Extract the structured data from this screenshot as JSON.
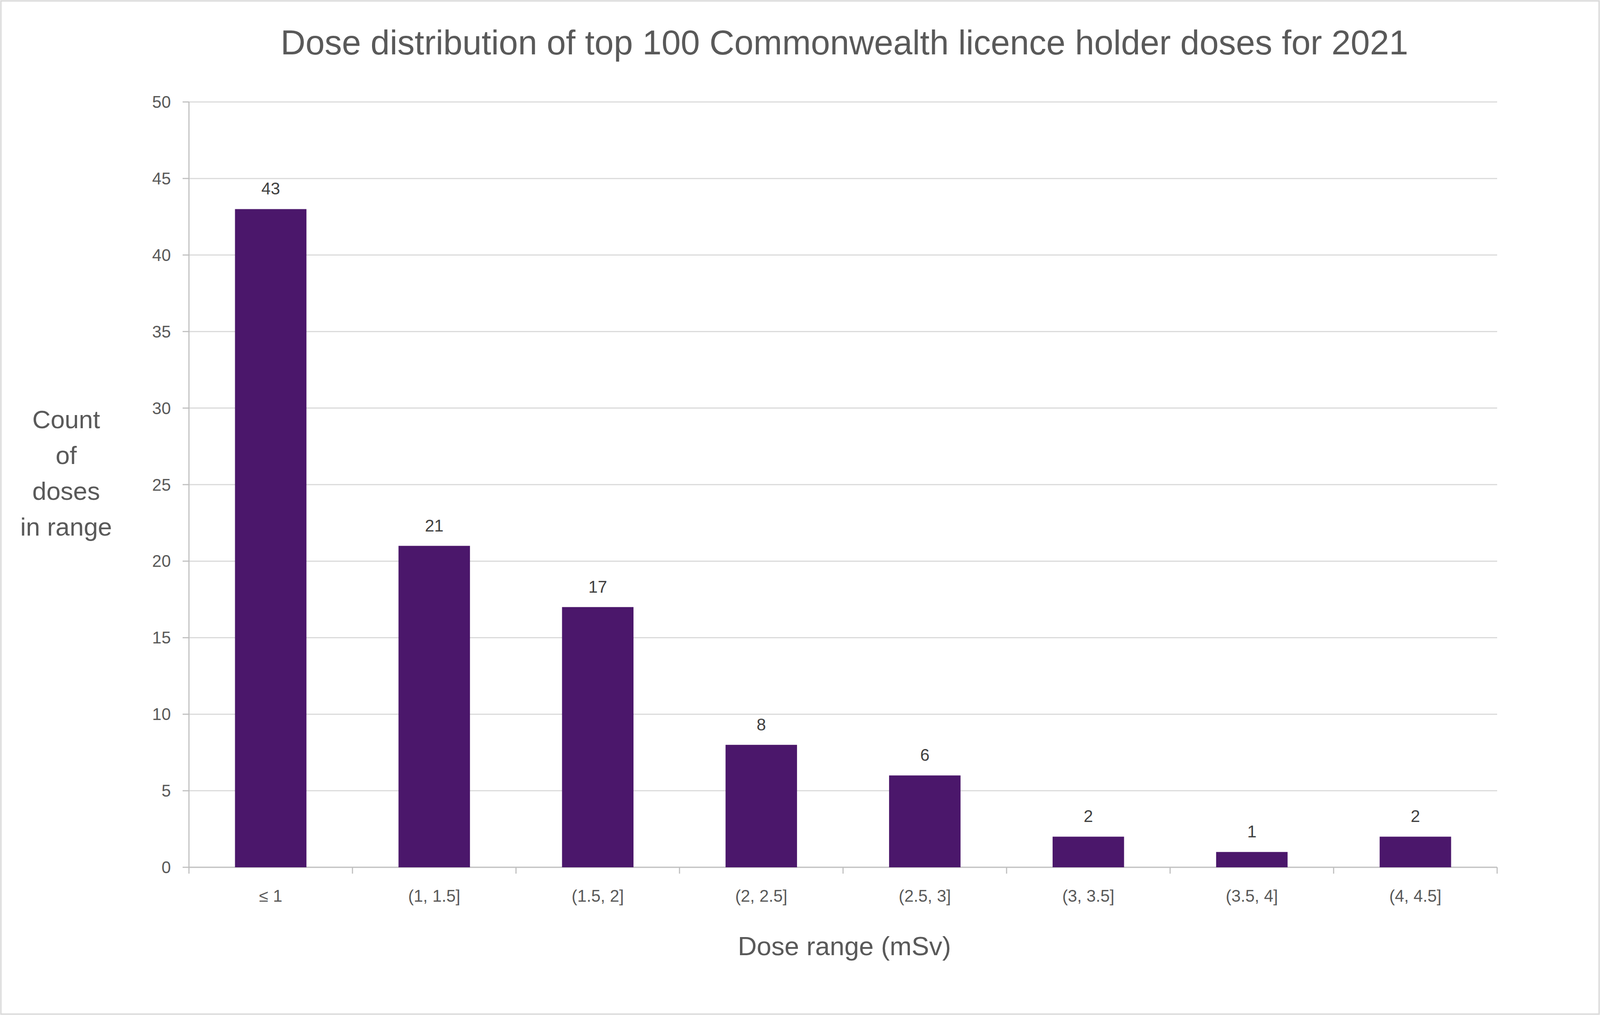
{
  "chart_data": {
    "type": "bar",
    "title": "Dose distribution of top 100 Commonwealth licence holder doses for 2021",
    "x_label": "Dose range (mSv)",
    "y_label": "Count\nof\ndoses\nin range",
    "categories": [
      "≤ 1",
      "(1, 1.5]",
      "(1.5, 2]",
      "(2, 2.5]",
      "(2.5, 3]",
      "(3, 3.5]",
      "(3.5, 4]",
      "(4, 4.5]"
    ],
    "values": [
      43,
      21,
      17,
      8,
      6,
      2,
      1,
      2
    ],
    "color": "#4b176b",
    "ylim": [
      0,
      50
    ],
    "yticks": [
      0,
      5,
      10,
      15,
      20,
      25,
      30,
      35,
      40,
      45,
      50
    ],
    "grid": true,
    "data_labels": true
  }
}
